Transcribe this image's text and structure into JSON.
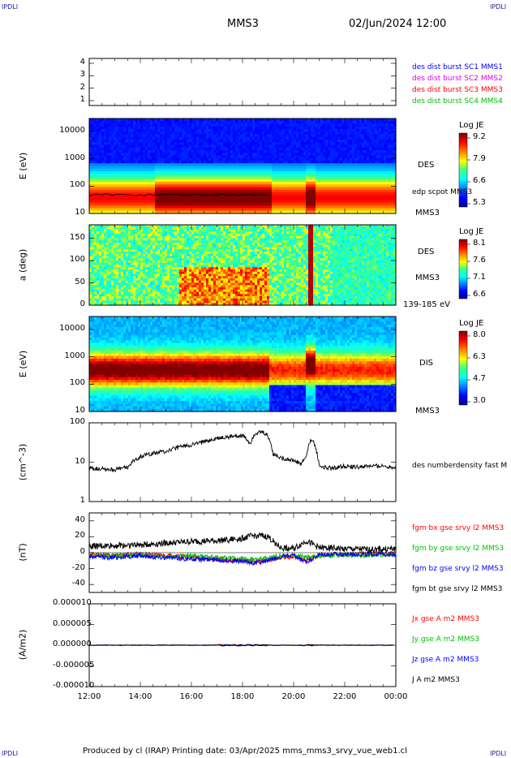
{
  "corner_tag": "IPDLI",
  "title": "MMS3",
  "datetime": "02/Jun/2024 12:00",
  "footer": "Produced by cl (IRAP)   Printing date: 03/Apr/2025   mms_mms3_srvy_vue_web1.cl",
  "colors": {
    "blue": "#0000ff",
    "magenta": "#e000e0",
    "red": "#ff0000",
    "green": "#00c000",
    "black": "#000000"
  },
  "chart_data": {
    "type": "line",
    "x_ticks": [
      "12:00",
      "14:00",
      "16:00",
      "18:00",
      "20:00",
      "22:00",
      "00:00"
    ],
    "x_range": [
      "12:00",
      "00:00"
    ],
    "panels": [
      {
        "id": "burst",
        "type": "line",
        "ylim": [
          0.5,
          4.5
        ],
        "yticks": [
          "4",
          "3",
          "2",
          "1"
        ],
        "legend": [
          {
            "label": "des dist burst SC1 MMS1",
            "color": "#0000ff"
          },
          {
            "label": "des dist burst SC2 MMS2",
            "color": "#e000e0"
          },
          {
            "label": "des dist burst SC3 MMS3",
            "color": "#ff0000"
          },
          {
            "label": "des dist burst SC4 MMS4",
            "color": "#00c000"
          }
        ]
      },
      {
        "id": "des_energy",
        "type": "heatmap",
        "ylabel": "E (eV)",
        "scale": "log",
        "ylim": [
          10,
          30000
        ],
        "yticks": [
          "10000",
          "1000",
          "100",
          "10"
        ],
        "labels": [
          "DES",
          "MMS3"
        ],
        "overlay_label": "edp scpot MMS3",
        "colorbar": {
          "title": "Log JE",
          "ticks": [
            "9.2",
            "7.9",
            "6.6",
            "5.3"
          ],
          "range": [
            5.3,
            9.2
          ]
        }
      },
      {
        "id": "des_pitch",
        "type": "heatmap",
        "ylabel": "a (deg)",
        "ylim": [
          0,
          180
        ],
        "yticks": [
          "150",
          "100",
          "50",
          "0"
        ],
        "labels": [
          "DES",
          "MMS3",
          "139-185 eV"
        ],
        "colorbar": {
          "title": "Log JE",
          "ticks": [
            "8.1",
            "7.6",
            "7.1",
            "6.6"
          ],
          "range": [
            6.6,
            8.1
          ]
        }
      },
      {
        "id": "dis_energy",
        "type": "heatmap",
        "ylabel": "E (eV)",
        "scale": "log",
        "ylim": [
          10,
          30000
        ],
        "yticks": [
          "10000",
          "1000",
          "100",
          "10"
        ],
        "labels": [
          "DIS",
          "MMS3"
        ],
        "colorbar": {
          "title": "Log JE",
          "ticks": [
            "8.0",
            "6.3",
            "4.7",
            "3.0"
          ],
          "range": [
            3.0,
            8.0
          ]
        }
      },
      {
        "id": "density",
        "type": "line",
        "ylabel": "(cm^-3)",
        "scale": "log",
        "ylim": [
          1,
          100
        ],
        "yticks": [
          "100",
          "10",
          "1"
        ],
        "series": [
          {
            "name": "des numberdensity fast M",
            "color": "#000000",
            "x_hours": [
              12.0,
              12.5,
              13.0,
              13.5,
              14.0,
              14.5,
              15.0,
              15.5,
              16.0,
              16.5,
              17.0,
              17.5,
              18.0,
              18.3,
              18.5,
              18.8,
              19.0,
              19.2,
              19.5,
              20.0,
              20.3,
              20.5,
              20.7,
              21.0,
              21.5,
              22.0,
              22.5,
              23.0,
              23.5,
              24.0
            ],
            "values": [
              7,
              7,
              6.5,
              7.5,
              14,
              17,
              19,
              24,
              28,
              33,
              40,
              45,
              48,
              30,
              55,
              58,
              45,
              16,
              13,
              11,
              9,
              14,
              40,
              8,
              7,
              8,
              7.5,
              8,
              8,
              7.5
            ]
          }
        ]
      },
      {
        "id": "fgm",
        "type": "line",
        "ylabel": "(nT)",
        "ylim": [
          -50,
          50
        ],
        "yticks": [
          "40",
          "20",
          "0",
          "-20",
          "-40"
        ],
        "series": [
          {
            "name": "fgm bx gse srvy l2 MMS3",
            "color": "#ff0000",
            "x_hours": [
              12,
              13,
              14,
              15,
              16,
              17,
              18,
              18.5,
              19,
              19.5,
              20,
              20.5,
              21,
              22,
              23,
              24
            ],
            "values": [
              -2,
              -3,
              -2,
              -4,
              -6,
              -8,
              -10,
              -12,
              -9,
              -6,
              -5,
              -10,
              -3,
              -2,
              -1,
              -1
            ]
          },
          {
            "name": "fgm by gse srvy l2 MMS3",
            "color": "#00c000",
            "x_hours": [
              12,
              13,
              14,
              15,
              16,
              17,
              18,
              18.5,
              19,
              19.5,
              20,
              20.5,
              21,
              22,
              23,
              24
            ],
            "values": [
              -3,
              -4,
              -3,
              -5,
              -4,
              -6,
              -8,
              -9,
              -7,
              -4,
              -3,
              -6,
              -4,
              -3,
              -3,
              -2
            ]
          },
          {
            "name": "fgm bz gse srvy l2 MMS3",
            "color": "#0000ff",
            "x_hours": [
              12,
              13,
              14,
              15,
              16,
              17,
              18,
              18.5,
              19,
              19.5,
              20,
              20.5,
              21,
              22,
              23,
              24
            ],
            "values": [
              -5,
              -6,
              -4,
              -6,
              -8,
              -9,
              -11,
              -13,
              -10,
              -5,
              -4,
              -12,
              -3,
              -2,
              -2,
              -2
            ]
          },
          {
            "name": "fgm bt gse srvy l2 MMS3",
            "color": "#000000",
            "x_hours": [
              12,
              13,
              14,
              15,
              16,
              17,
              18,
              18.5,
              19,
              19.5,
              20,
              20.5,
              21,
              22,
              23,
              24
            ],
            "values": [
              8,
              9,
              10,
              12,
              14,
              15,
              18,
              22,
              20,
              6,
              5,
              15,
              6,
              5,
              4,
              5
            ]
          }
        ]
      },
      {
        "id": "current",
        "type": "line",
        "ylabel": "(A/m2)",
        "ylim": [
          -1e-05,
          1e-05
        ],
        "yticks": [
          "0.000010",
          "0.000005",
          "0.000000",
          "-0.000005",
          "-0.000010"
        ],
        "series": [
          {
            "name": "Jx gse A m2 MMS3",
            "color": "#ff0000",
            "values": [
              0
            ]
          },
          {
            "name": "Jy gse A m2 MMS3",
            "color": "#00c000",
            "values": [
              0
            ]
          },
          {
            "name": "Jz gse A m2 MMS3",
            "color": "#0000ff",
            "values": [
              0
            ]
          },
          {
            "name": "J A m2 MMS3",
            "color": "#000000",
            "values": [
              0
            ]
          }
        ]
      }
    ]
  }
}
